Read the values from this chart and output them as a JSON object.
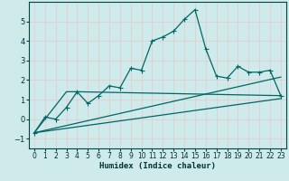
{
  "title": "",
  "xlabel": "Humidex (Indice chaleur)",
  "ylabel": "",
  "bg_color": "#ceeaea",
  "line_color": "#006666",
  "grid_color": "#e8c8c8",
  "xlim": [
    -0.5,
    23.5
  ],
  "ylim": [
    -1.5,
    6.0
  ],
  "yticks": [
    -1,
    0,
    1,
    2,
    3,
    4,
    5
  ],
  "xticks": [
    0,
    1,
    2,
    3,
    4,
    5,
    6,
    7,
    8,
    9,
    10,
    11,
    12,
    13,
    14,
    15,
    16,
    17,
    18,
    19,
    20,
    21,
    22,
    23
  ],
  "main_line_x": [
    0,
    1,
    2,
    3,
    4,
    5,
    6,
    7,
    8,
    9,
    10,
    11,
    12,
    13,
    14,
    15,
    16,
    17,
    18,
    19,
    20,
    21,
    22,
    23
  ],
  "main_line_y": [
    -0.7,
    0.1,
    0.0,
    0.6,
    1.4,
    0.8,
    1.2,
    1.7,
    1.6,
    2.6,
    2.5,
    4.0,
    4.2,
    4.5,
    5.1,
    5.6,
    3.6,
    2.2,
    2.1,
    2.7,
    2.4,
    2.4,
    2.5,
    1.2
  ],
  "line2_x": [
    0,
    3,
    4,
    23
  ],
  "line2_y": [
    -0.7,
    1.4,
    1.4,
    1.2
  ],
  "line3_x": [
    0,
    23
  ],
  "line3_y": [
    -0.7,
    1.05
  ],
  "line4_x": [
    0,
    23
  ],
  "line4_y": [
    -0.7,
    2.15
  ]
}
